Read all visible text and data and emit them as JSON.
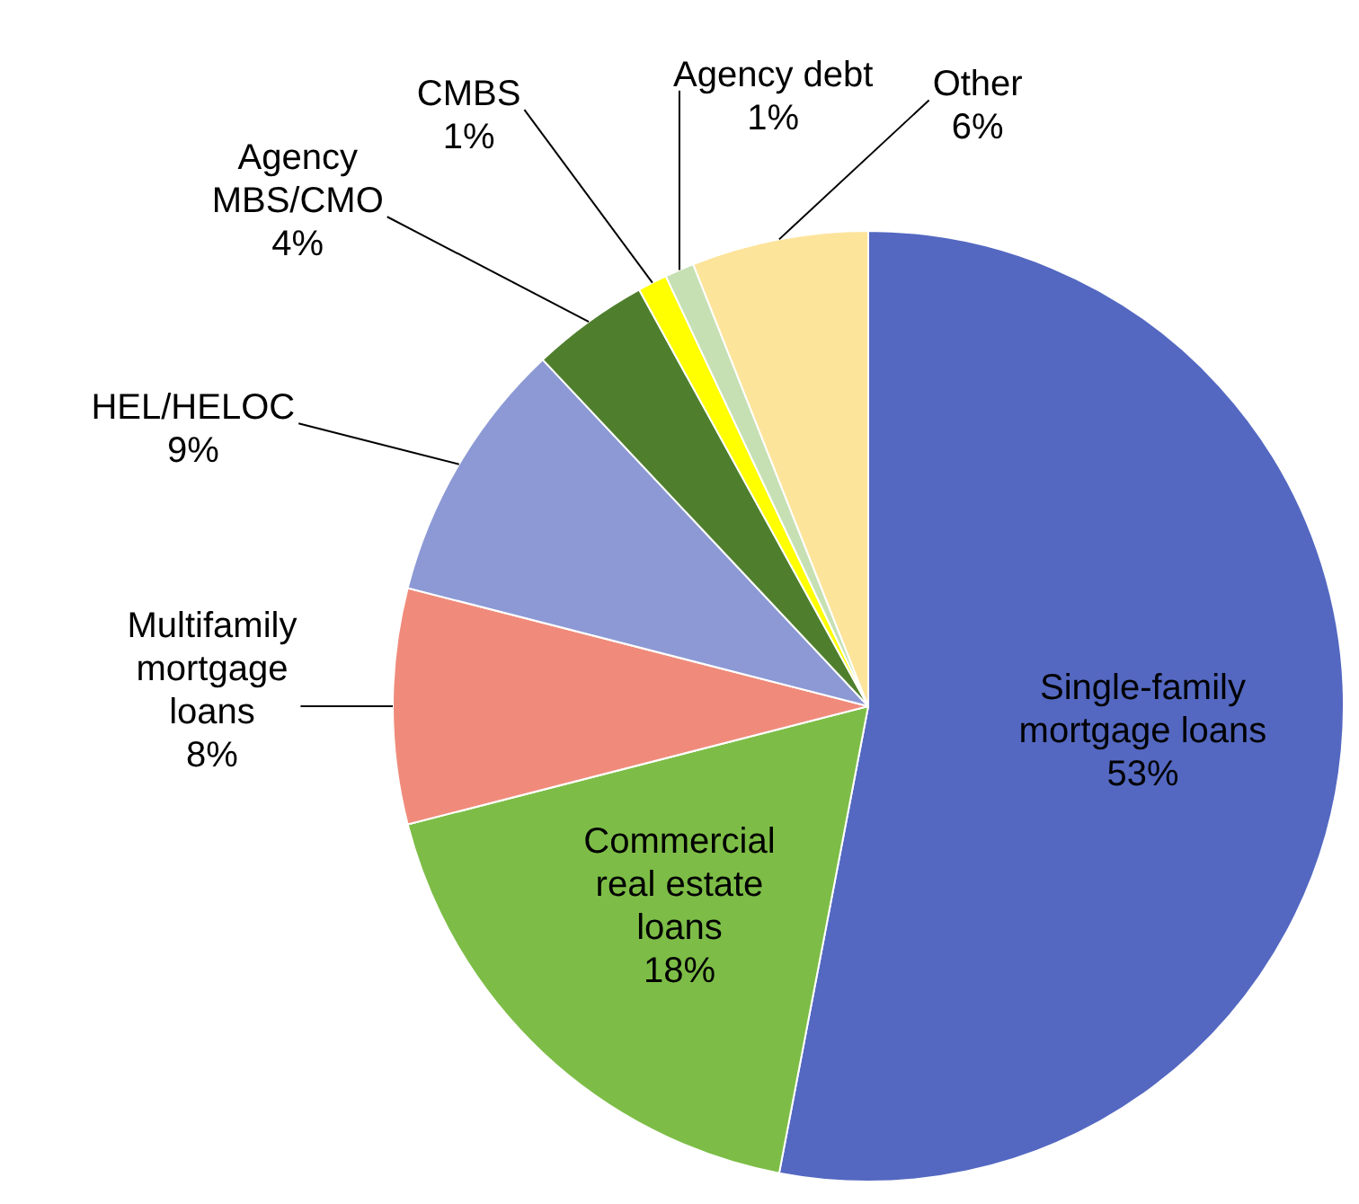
{
  "chart_data": {
    "type": "pie",
    "categories": [
      "Single-family mortgage loans",
      "Commercial real estate loans",
      "Multifamily mortgage loans",
      "HEL/HELOC",
      "Agency MBS/CMO",
      "CMBS",
      "Agency debt",
      "Other"
    ],
    "values": [
      53,
      18,
      8,
      9,
      4,
      1,
      1,
      6
    ],
    "value_labels": [
      "53%",
      "18%",
      "8%",
      "9%",
      "4%",
      "1%",
      "1%",
      "6%"
    ],
    "colors": [
      "#5468c1",
      "#7dbd47",
      "#f08b7b",
      "#8c99d5",
      "#4f7f2d",
      "#ffff00",
      "#c6e0b4",
      "#fde49b"
    ],
    "legend": false
  }
}
